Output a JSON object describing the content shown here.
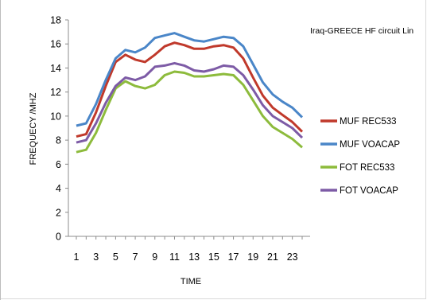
{
  "chart_data": {
    "type": "line",
    "title": "Iraq-GREECE HF circuit Lin",
    "xlabel": "TIME",
    "ylabel": "FREQUECY /MHZ",
    "ylim": [
      0,
      18
    ],
    "xlim": [
      1,
      24
    ],
    "grid": false,
    "legend": "right",
    "x": [
      1,
      2,
      3,
      4,
      5,
      6,
      7,
      8,
      9,
      10,
      11,
      12,
      13,
      14,
      15,
      16,
      17,
      18,
      19,
      20,
      21,
      22,
      23,
      24
    ],
    "x_tick_labels": [
      "1",
      "3",
      "5",
      "7",
      "9",
      "11",
      "13",
      "15",
      "17",
      "19",
      "21",
      "23"
    ],
    "y_tick_labels": [
      "0",
      "2",
      "4",
      "6",
      "8",
      "10",
      "12",
      "14",
      "16",
      "18"
    ],
    "series": [
      {
        "name": "MUF REC533",
        "color": "#c0392b",
        "values": [
          8.3,
          8.5,
          10.3,
          12.5,
          14.5,
          15.1,
          14.7,
          14.5,
          15.1,
          15.8,
          16.1,
          15.9,
          15.6,
          15.6,
          15.8,
          15.9,
          15.7,
          14.8,
          13.2,
          11.7,
          10.7,
          10.1,
          9.5,
          8.7
        ],
        "stroke": 3
      },
      {
        "name": "MUF VOACAP",
        "color": "#4a86c8",
        "values": [
          9.2,
          9.4,
          11.0,
          13.0,
          14.8,
          15.5,
          15.3,
          15.7,
          16.5,
          16.7,
          16.9,
          16.6,
          16.3,
          16.2,
          16.4,
          16.6,
          16.5,
          15.8,
          14.3,
          12.8,
          11.8,
          11.2,
          10.7,
          9.9
        ],
        "stroke": 3
      },
      {
        "name": "FOT REC533",
        "color": "#8dbb3c",
        "values": [
          7.0,
          7.2,
          8.6,
          10.5,
          12.3,
          12.9,
          12.5,
          12.3,
          12.6,
          13.4,
          13.7,
          13.6,
          13.3,
          13.3,
          13.4,
          13.5,
          13.4,
          12.6,
          11.3,
          10.0,
          9.1,
          8.6,
          8.1,
          7.4
        ],
        "stroke": 3
      },
      {
        "name": "FOT VOACAP",
        "color": "#7d5ba6",
        "values": [
          7.8,
          8.0,
          9.4,
          11.1,
          12.5,
          13.2,
          13.0,
          13.3,
          14.1,
          14.2,
          14.4,
          14.2,
          13.8,
          13.7,
          13.9,
          14.2,
          14.1,
          13.4,
          12.2,
          10.9,
          10.0,
          9.5,
          9.0,
          8.2
        ],
        "stroke": 3
      }
    ]
  }
}
